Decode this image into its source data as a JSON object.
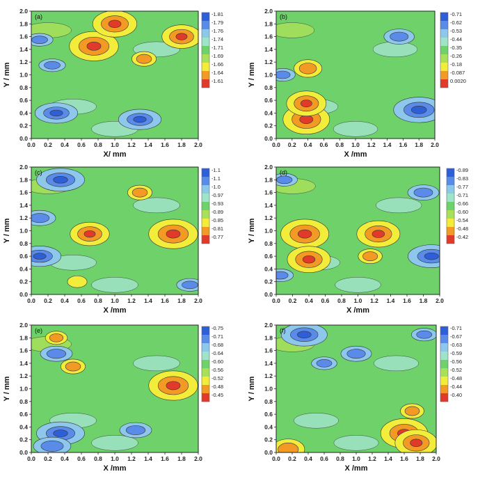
{
  "chart_data": [
    {
      "type": "heatmap",
      "panel_label": "(a)",
      "xlabel": "X/ mm",
      "ylabel": "Y / mm",
      "xlim": [
        0,
        2
      ],
      "ylim": [
        0,
        2
      ],
      "x_ticks": [
        "0.0",
        "0.2",
        "0.4",
        "0.6",
        "0.8",
        "1.0",
        "1.2",
        "1.4",
        "1.6",
        "1.8",
        "2.0"
      ],
      "y_ticks": [
        "0.0",
        "0.2",
        "0.4",
        "0.6",
        "0.8",
        "1.0",
        "1.2",
        "1.4",
        "1.6",
        "1.8",
        "2.0"
      ],
      "colorbar_labels": [
        "-1.81",
        "-1.79",
        "-1.76",
        "-1.74",
        "-1.71",
        "-1.69",
        "-1.66",
        "-1.64",
        "-1.61"
      ],
      "hot_spots": [
        [
          0.75,
          1.45,
          1.0
        ],
        [
          1.0,
          1.8,
          0.9
        ],
        [
          1.8,
          1.6,
          0.8
        ],
        [
          1.35,
          1.25,
          0.5
        ]
      ],
      "cold_spots": [
        [
          0.3,
          0.4,
          0.8
        ],
        [
          1.3,
          0.3,
          0.8
        ],
        [
          0.25,
          1.15,
          0.5
        ],
        [
          0.1,
          1.55,
          0.5
        ]
      ]
    },
    {
      "type": "heatmap",
      "panel_label": "(b)",
      "xlabel": "X /mm",
      "ylabel": "Y / mm",
      "xlim": [
        0,
        2
      ],
      "ylim": [
        0,
        2
      ],
      "x_ticks": [
        "0.0",
        "0.2",
        "0.4",
        "0.6",
        "0.8",
        "1.0",
        "1.2",
        "1.4",
        "1.6",
        "1.8",
        "2.0"
      ],
      "y_ticks": [
        "0.0",
        "0.2",
        "0.4",
        "0.6",
        "0.8",
        "1.0",
        "1.2",
        "1.4",
        "1.6",
        "1.8",
        "2.0"
      ],
      "colorbar_labels": [
        "-0.71",
        "-0.62",
        "-0.53",
        "-0.44",
        "-0.35",
        "-0.26",
        "-0.18",
        "-0.087",
        "0.0020"
      ],
      "hot_spots": [
        [
          0.38,
          0.3,
          1.0
        ],
        [
          0.38,
          0.55,
          0.85
        ],
        [
          0.4,
          1.1,
          0.6
        ]
      ],
      "cold_spots": [
        [
          1.8,
          0.45,
          1.0
        ],
        [
          1.55,
          1.6,
          0.6
        ],
        [
          0.08,
          1.0,
          0.5
        ]
      ]
    },
    {
      "type": "heatmap",
      "panel_label": "(c)",
      "xlabel": "X /mm",
      "ylabel": "Y / mm",
      "xlim": [
        0,
        2
      ],
      "ylim": [
        0,
        2
      ],
      "x_ticks": [
        "0.0",
        "0.2",
        "0.4",
        "0.6",
        "0.8",
        "1.0",
        "1.2",
        "1.4",
        "1.6",
        "1.8",
        "2.0"
      ],
      "y_ticks": [
        "0.0",
        "0.2",
        "0.4",
        "0.6",
        "0.8",
        "1.0",
        "1.2",
        "1.4",
        "1.6",
        "1.8",
        "2.0"
      ],
      "colorbar_labels": [
        "-1.1",
        "-1.1",
        "-1.0",
        "-0.97",
        "-0.93",
        "-0.89",
        "-0.85",
        "-0.81",
        "-0.77"
      ],
      "hot_spots": [
        [
          1.7,
          0.95,
          1.0
        ],
        [
          0.7,
          0.95,
          0.8
        ],
        [
          1.3,
          1.6,
          0.5
        ],
        [
          0.55,
          0.2,
          0.4
        ]
      ],
      "cold_spots": [
        [
          0.35,
          1.8,
          0.9
        ],
        [
          0.1,
          0.6,
          0.8
        ],
        [
          0.1,
          1.2,
          0.6
        ],
        [
          1.9,
          0.15,
          0.5
        ]
      ]
    },
    {
      "type": "heatmap",
      "panel_label": "(d)",
      "xlabel": "X /mm",
      "ylabel": "Y / mm",
      "xlim": [
        0,
        2
      ],
      "ylim": [
        0,
        2
      ],
      "x_ticks": [
        "0.0",
        "0.2",
        "0.4",
        "0.6",
        "0.8",
        "1.0",
        "1.2",
        "1.4",
        "1.6",
        "1.8",
        "2.0"
      ],
      "y_ticks": [
        "0.0",
        "0.2",
        "0.4",
        "0.6",
        "0.8",
        "1.0",
        "1.2",
        "1.4",
        "1.6",
        "1.8",
        "2.0"
      ],
      "colorbar_labels": [
        "-0.89",
        "-0.83",
        "-0.77",
        "-0.71",
        "-0.66",
        "-0.60",
        "-0.54",
        "-0.48",
        "-0.42"
      ],
      "hot_spots": [
        [
          0.35,
          0.95,
          1.0
        ],
        [
          0.4,
          0.55,
          0.9
        ],
        [
          1.25,
          0.95,
          0.9
        ],
        [
          1.15,
          0.6,
          0.5
        ]
      ],
      "cold_spots": [
        [
          1.9,
          0.6,
          0.9
        ],
        [
          1.8,
          1.6,
          0.6
        ],
        [
          0.05,
          0.3,
          0.5
        ],
        [
          0.1,
          1.8,
          0.5
        ]
      ]
    },
    {
      "type": "heatmap",
      "panel_label": "(e)",
      "xlabel": "X /mm",
      "ylabel": "Y / mm",
      "xlim": [
        0,
        2
      ],
      "ylim": [
        0,
        2
      ],
      "x_ticks": [
        "0.0",
        "0.2",
        "0.4",
        "0.6",
        "0.8",
        "1.0",
        "1.2",
        "1.4",
        "1.6",
        "1.8",
        "2.0"
      ],
      "y_ticks": [
        "0.0",
        "0.2",
        "0.4",
        "0.6",
        "0.8",
        "1.0",
        "1.2",
        "1.4",
        "1.6",
        "1.8",
        "2.0"
      ],
      "colorbar_labels": [
        "-0.75",
        "-0.71",
        "-0.68",
        "-0.64",
        "-0.60",
        "-0.56",
        "-0.52",
        "-0.48",
        "-0.45"
      ],
      "hot_spots": [
        [
          1.7,
          1.05,
          1.0
        ],
        [
          0.5,
          1.35,
          0.5
        ],
        [
          0.3,
          1.8,
          0.45
        ]
      ],
      "cold_spots": [
        [
          0.35,
          0.3,
          0.9
        ],
        [
          0.25,
          0.1,
          0.7
        ],
        [
          1.25,
          0.35,
          0.6
        ],
        [
          0.3,
          1.55,
          0.6
        ]
      ]
    },
    {
      "type": "heatmap",
      "panel_label": "(f)",
      "xlabel": "X /mm",
      "ylabel": "Y / mm",
      "xlim": [
        0,
        2
      ],
      "ylim": [
        0,
        2
      ],
      "x_ticks": [
        "0.0",
        "0.2",
        "0.4",
        "0.6",
        "0.8",
        "1.0",
        "1.2",
        "1.4",
        "1.6",
        "1.8",
        "2.0"
      ],
      "y_ticks": [
        "0.0",
        "0.2",
        "0.4",
        "0.6",
        "0.8",
        "1.0",
        "1.2",
        "1.4",
        "1.6",
        "1.8",
        "2.0"
      ],
      "colorbar_labels": [
        "-0.71",
        "-0.67",
        "-0.63",
        "-0.59",
        "-0.56",
        "-0.52",
        "-0.48",
        "-0.44",
        "-0.40"
      ],
      "hot_spots": [
        [
          1.6,
          0.3,
          1.0
        ],
        [
          1.75,
          0.15,
          0.9
        ],
        [
          0.15,
          0.05,
          0.7
        ],
        [
          1.7,
          0.65,
          0.5
        ]
      ],
      "cold_spots": [
        [
          0.35,
          1.85,
          0.9
        ],
        [
          1.0,
          1.55,
          0.6
        ],
        [
          0.6,
          1.4,
          0.5
        ],
        [
          1.85,
          1.85,
          0.5
        ]
      ]
    }
  ],
  "palette": [
    "#2f5fd6",
    "#5b8be8",
    "#8ec7ec",
    "#9fe3c9",
    "#6ed16a",
    "#a8e05a",
    "#f2ec3a",
    "#f29a24",
    "#e23a2a"
  ]
}
